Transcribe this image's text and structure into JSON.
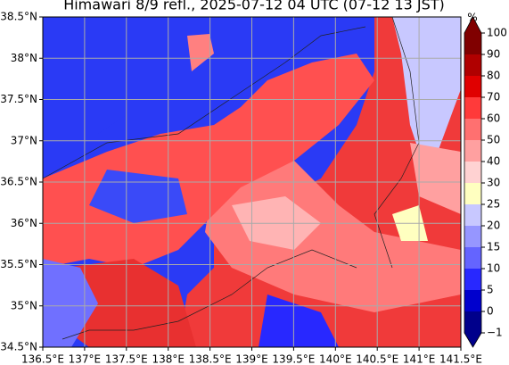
{
  "map": {
    "title": "Himawari 8/9 refl., 2025-07-12 04 UTC (07-12 13 JST)",
    "xlim": [
      136.5,
      141.5
    ],
    "ylim": [
      34.5,
      38.5
    ],
    "xticks": [
      {
        "value": 136.5,
        "label": "136.5°E"
      },
      {
        "value": 137,
        "label": "137°E"
      },
      {
        "value": 137.5,
        "label": "137.5°E"
      },
      {
        "value": 138,
        "label": "138°E"
      },
      {
        "value": 138.5,
        "label": "138.5°E"
      },
      {
        "value": 139,
        "label": "139°E"
      },
      {
        "value": 139.5,
        "label": "139.5°E"
      },
      {
        "value": 140,
        "label": "140°E"
      },
      {
        "value": 140.5,
        "label": "140.5°E"
      },
      {
        "value": 141,
        "label": "141°E"
      },
      {
        "value": 141.5,
        "label": "141.5°E"
      }
    ],
    "yticks": [
      {
        "value": 34.5,
        "label": "34.5°N"
      },
      {
        "value": 35,
        "label": "35°N"
      },
      {
        "value": 35.5,
        "label": "35.5°N"
      },
      {
        "value": 36,
        "label": "36°N"
      },
      {
        "value": 36.5,
        "label": "36.5°N"
      },
      {
        "value": 37,
        "label": "37°N"
      },
      {
        "value": 37.5,
        "label": "37.5°N"
      },
      {
        "value": 38,
        "label": "38°N"
      },
      {
        "value": 38.5,
        "label": "38.5°N"
      }
    ],
    "grid": true
  },
  "colorbar": {
    "unit": "%",
    "ticks": [
      {
        "value": -1,
        "label": "−1"
      },
      0,
      5,
      10,
      15,
      20,
      25,
      30,
      40,
      50,
      60,
      70,
      80,
      90,
      100
    ],
    "colors": [
      "#00008b",
      "#0000cd",
      "#2828ff",
      "#6464ff",
      "#9696ff",
      "#c8c8ff",
      "#ffffc0",
      "#ffd2d2",
      "#ffa0a0",
      "#ff7070",
      "#ff3a3a",
      "#e00000",
      "#b00000",
      "#800000"
    ]
  }
}
